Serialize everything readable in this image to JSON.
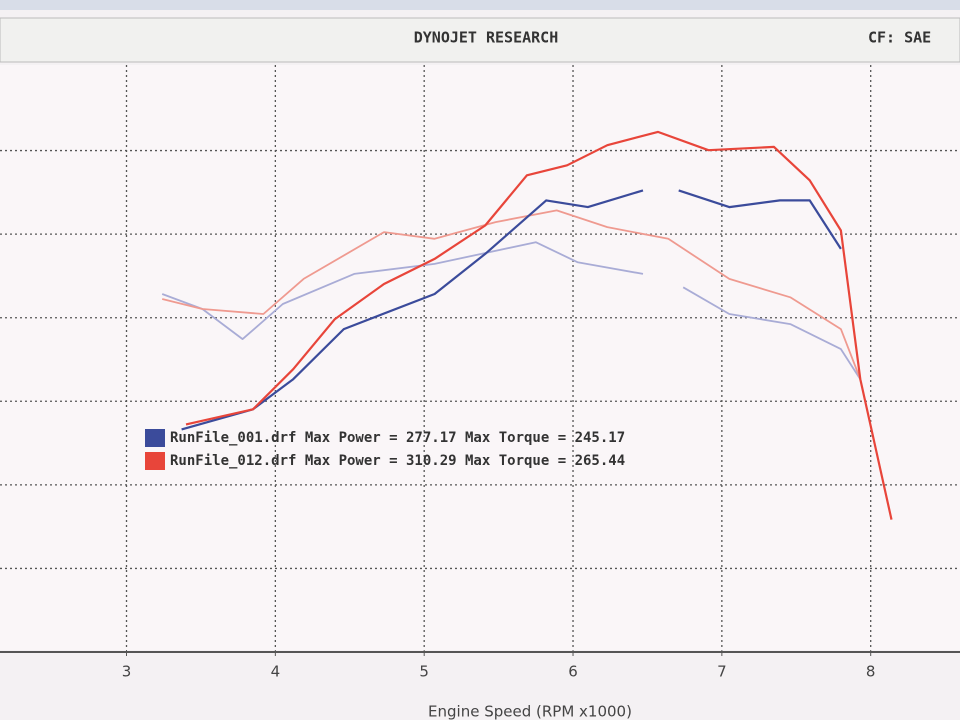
{
  "chart_data": {
    "type": "line",
    "header": "DYNOJET RESEARCH",
    "correction": "CF: SAE",
    "x_label": "Engine Speed (RPM x1000)",
    "xlim": [
      2.15,
      8.6
    ],
    "xticks": [
      3,
      4,
      5,
      6,
      7,
      8
    ],
    "ylim": [
      0,
      350
    ],
    "grid": true,
    "series": [
      {
        "name": "RunFile_001.drf Max Power = 277.17 Max Torque = 245.17",
        "color": "#3b4b9b",
        "torque_color": "#a9acd6",
        "power_x": [
          3.37,
          3.85,
          4.12,
          4.46,
          5.07,
          5.41,
          5.82,
          6.1,
          6.47,
          null,
          6.71,
          7.05,
          7.39,
          7.59,
          7.8
        ],
        "power": [
          132,
          144,
          162,
          192,
          213,
          237,
          269,
          265,
          275,
          null,
          275,
          265,
          269,
          269,
          240
        ],
        "torque_x": [
          3.24,
          3.51,
          3.78,
          4.05,
          4.53,
          5.07,
          5.75,
          6.03,
          6.47,
          null,
          6.74,
          7.05,
          7.46,
          7.8,
          7.93
        ],
        "torque": [
          213,
          204,
          186,
          207,
          225,
          231,
          244,
          232,
          225,
          null,
          217,
          201,
          195,
          180,
          162
        ]
      },
      {
        "name": "RunFile_012.drf Max Power = 310.29 Max Torque = 265.44",
        "color": "#e8453a",
        "torque_color": "#ef9a90",
        "power_x": [
          3.4,
          3.85,
          4.12,
          4.4,
          4.73,
          5.07,
          5.41,
          5.69,
          5.96,
          6.23,
          6.57,
          6.91,
          7.35,
          7.59,
          7.8,
          7.93,
          8.14
        ],
        "power": [
          135,
          144,
          168,
          198,
          219,
          234,
          254,
          284,
          290,
          302,
          310,
          299,
          301,
          281,
          251,
          162,
          78
        ],
        "torque_x": [
          3.24,
          3.51,
          3.92,
          4.19,
          4.73,
          5.07,
          5.48,
          5.89,
          6.23,
          6.64,
          7.05,
          7.46,
          7.8,
          7.93
        ],
        "torque": [
          210,
          204,
          201,
          222,
          250,
          246,
          256,
          263,
          253,
          246,
          222,
          211,
          192,
          162
        ]
      }
    ]
  }
}
